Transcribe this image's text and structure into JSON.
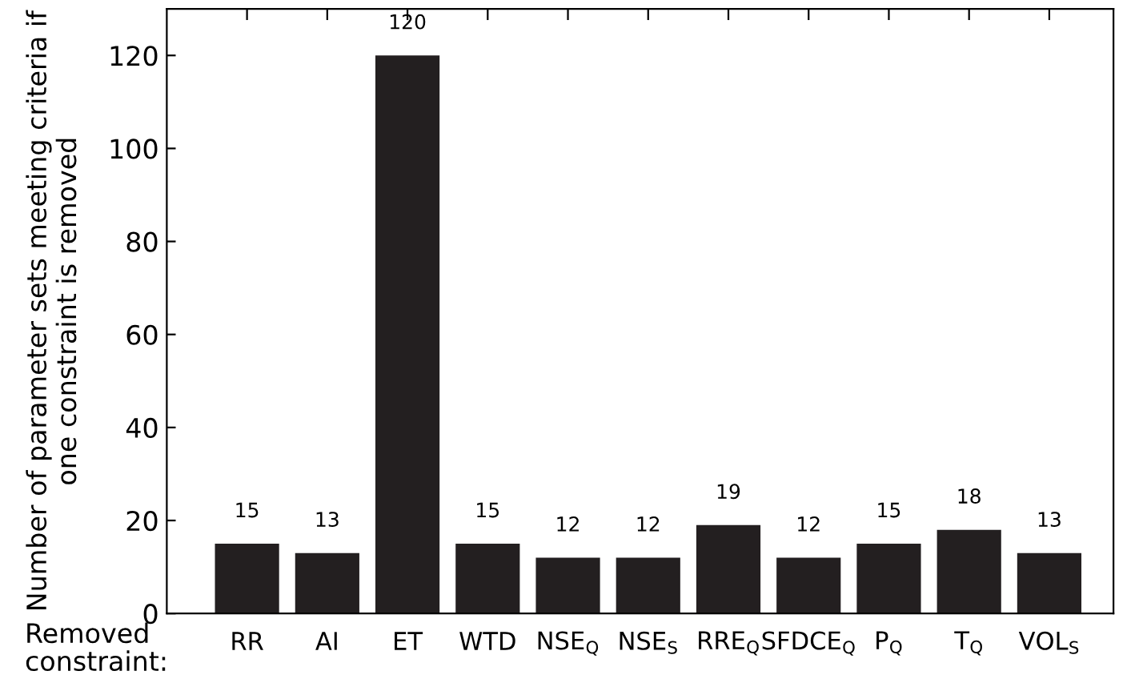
{
  "chart_data": {
    "type": "bar",
    "ylabel": "Number of parameter sets meeting criteria if one constraint is removed",
    "xlabel": "Removed\nconstraint:",
    "categories": [
      "RR",
      "AI",
      "ET",
      "WTD",
      "NSE$_{Q}$",
      "NSE$_{S}$",
      "RRE$_{Q}$",
      "SFDCE$_{Q}$",
      "P$_{Q}$",
      "T$_{Q}$",
      "VOL$_{S}$"
    ],
    "values": [
      15,
      13,
      120,
      15,
      12,
      12,
      19,
      12,
      15,
      18,
      13
    ],
    "color": "#231f20",
    "ylim": [
      0,
      130
    ],
    "yticks": [
      0,
      20,
      40,
      60,
      80,
      100,
      120
    ],
    "data_labels": true,
    "grid": false
  }
}
